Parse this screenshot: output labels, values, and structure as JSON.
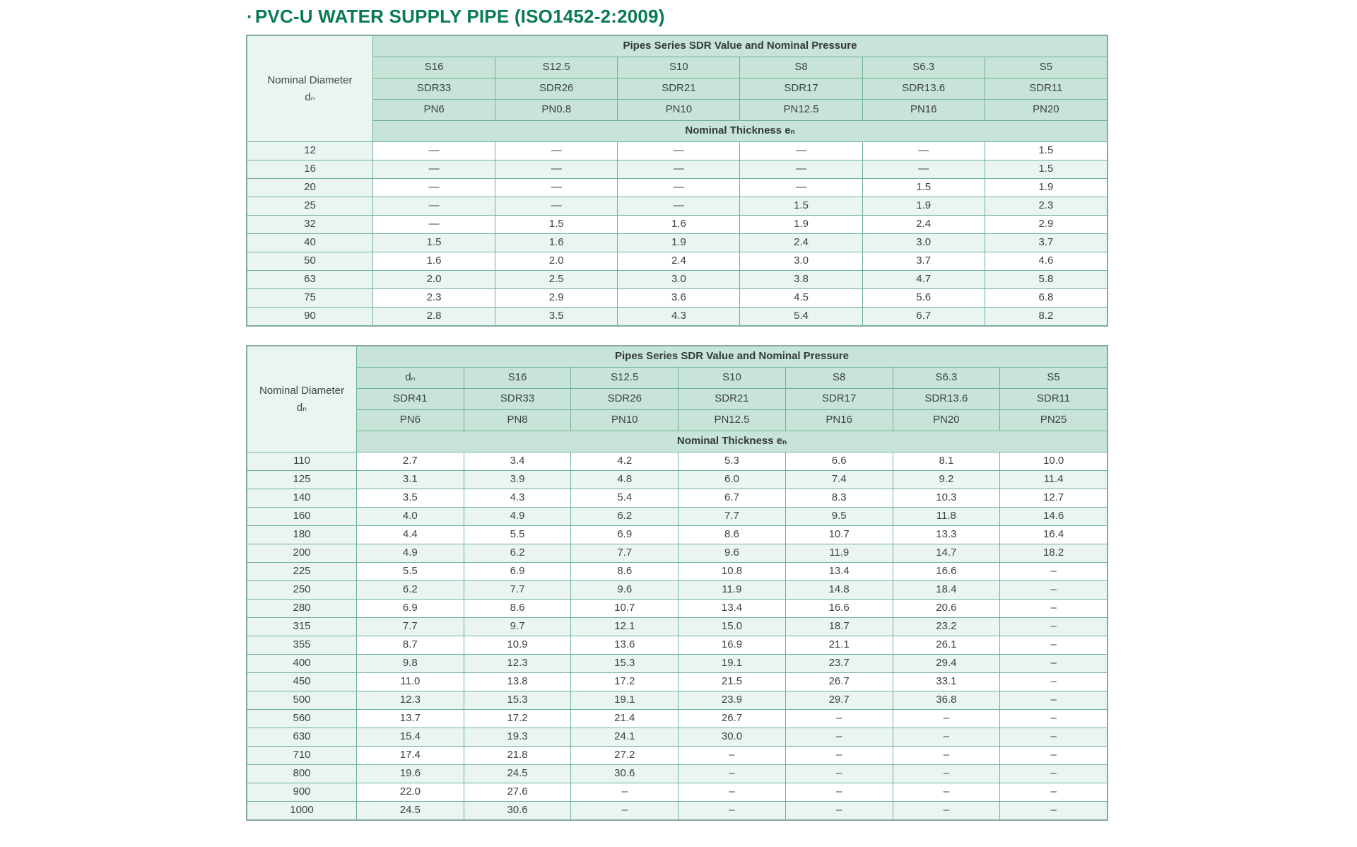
{
  "page": {
    "bullet": "·",
    "title": "PVC-U WATER SUPPLY PIPE (ISO1452-2:2009)"
  },
  "colors": {
    "title_green": "#087c50",
    "header_bg": "#c8e4d8",
    "tint_bg": "#eaf5f0",
    "grid_line": "#6fb297",
    "outer_border": "#96a59e",
    "text": "#3d4345"
  },
  "tables": [
    {
      "name": "pipe-spec-table-dn12-90",
      "banner": "Pipes Series SDR Value and Nominal Pressure",
      "corner": {
        "line1": "Nominal Diameter",
        "line2": "dₙ"
      },
      "thickness_label": "Nominal Thickness eₙ",
      "first_col_width": 178,
      "header_rows": [
        [
          "S16",
          "S12.5",
          "S10",
          "S8",
          "S6.3",
          "S5"
        ],
        [
          "SDR33",
          "SDR26",
          "SDR21",
          "SDR17",
          "SDR13.6",
          "SDR11"
        ],
        [
          "PN6",
          "PN0.8",
          "PN10",
          "PN12.5",
          "PN16",
          "PN20"
        ]
      ],
      "rows": [
        {
          "dn": "12",
          "values": [
            "—",
            "—",
            "—",
            "—",
            "—",
            "1.5"
          ]
        },
        {
          "dn": "16",
          "values": [
            "—",
            "—",
            "—",
            "—",
            "—",
            "1.5"
          ]
        },
        {
          "dn": "20",
          "values": [
            "—",
            "—",
            "—",
            "—",
            "1.5",
            "1.9"
          ]
        },
        {
          "dn": "25",
          "values": [
            "—",
            "—",
            "—",
            "1.5",
            "1.9",
            "2.3"
          ]
        },
        {
          "dn": "32",
          "values": [
            "—",
            "1.5",
            "1.6",
            "1.9",
            "2.4",
            "2.9"
          ]
        },
        {
          "dn": "40",
          "values": [
            "1.5",
            "1.6",
            "1.9",
            "2.4",
            "3.0",
            "3.7"
          ]
        },
        {
          "dn": "50",
          "values": [
            "1.6",
            "2.0",
            "2.4",
            "3.0",
            "3.7",
            "4.6"
          ]
        },
        {
          "dn": "63",
          "values": [
            "2.0",
            "2.5",
            "3.0",
            "3.8",
            "4.7",
            "5.8"
          ]
        },
        {
          "dn": "75",
          "values": [
            "2.3",
            "2.9",
            "3.6",
            "4.5",
            "5.6",
            "6.8"
          ]
        },
        {
          "dn": "90",
          "values": [
            "2.8",
            "3.5",
            "4.3",
            "5.4",
            "6.7",
            "8.2"
          ]
        }
      ]
    },
    {
      "name": "pipe-spec-table-dn110-1000",
      "banner": "Pipes Series SDR Value and Nominal Pressure",
      "corner": {
        "line1": "Nominal Diameter",
        "line2": "dₙ"
      },
      "thickness_label": "Nominal Thickness eₙ",
      "first_col_width": 155,
      "header_rows": [
        [
          "dₙ",
          "S16",
          "S12.5",
          "S10",
          "S8",
          "S6.3",
          "S5"
        ],
        [
          "SDR41",
          "SDR33",
          "SDR26",
          "SDR21",
          "SDR17",
          "SDR13.6",
          "SDR11"
        ],
        [
          "PN6",
          "PN8",
          "PN10",
          "PN12.5",
          "PN16",
          "PN20",
          "PN25"
        ]
      ],
      "rows": [
        {
          "dn": "110",
          "values": [
            "2.7",
            "3.4",
            "4.2",
            "5.3",
            "6.6",
            "8.1",
            "10.0"
          ]
        },
        {
          "dn": "125",
          "values": [
            "3.1",
            "3.9",
            "4.8",
            "6.0",
            "7.4",
            "9.2",
            "11.4"
          ]
        },
        {
          "dn": "140",
          "values": [
            "3.5",
            "4.3",
            "5.4",
            "6.7",
            "8.3",
            "10.3",
            "12.7"
          ]
        },
        {
          "dn": "160",
          "values": [
            "4.0",
            "4.9",
            "6.2",
            "7.7",
            "9.5",
            "11.8",
            "14.6"
          ]
        },
        {
          "dn": "180",
          "values": [
            "4.4",
            "5.5",
            "6.9",
            "8.6",
            "10.7",
            "13.3",
            "16.4"
          ]
        },
        {
          "dn": "200",
          "values": [
            "4.9",
            "6.2",
            "7.7",
            "9.6",
            "11.9",
            "14.7",
            "18.2"
          ]
        },
        {
          "dn": "225",
          "values": [
            "5.5",
            "6.9",
            "8.6",
            "10.8",
            "13.4",
            "16.6",
            "–"
          ]
        },
        {
          "dn": "250",
          "values": [
            "6.2",
            "7.7",
            "9.6",
            "11.9",
            "14.8",
            "18.4",
            "–"
          ]
        },
        {
          "dn": "280",
          "values": [
            "6.9",
            "8.6",
            "10.7",
            "13.4",
            "16.6",
            "20.6",
            "–"
          ]
        },
        {
          "dn": "315",
          "values": [
            "7.7",
            "9.7",
            "12.1",
            "15.0",
            "18.7",
            "23.2",
            "–"
          ]
        },
        {
          "dn": "355",
          "values": [
            "8.7",
            "10.9",
            "13.6",
            "16.9",
            "21.1",
            "26.1",
            "–"
          ]
        },
        {
          "dn": "400",
          "values": [
            "9.8",
            "12.3",
            "15.3",
            "19.1",
            "23.7",
            "29.4",
            "–"
          ]
        },
        {
          "dn": "450",
          "values": [
            "11.0",
            "13.8",
            "17.2",
            "21.5",
            "26.7",
            "33.1",
            "–"
          ]
        },
        {
          "dn": "500",
          "values": [
            "12.3",
            "15.3",
            "19.1",
            "23.9",
            "29.7",
            "36.8",
            "–"
          ]
        },
        {
          "dn": "560",
          "values": [
            "13.7",
            "17.2",
            "21.4",
            "26.7",
            "–",
            "–",
            "–"
          ]
        },
        {
          "dn": "630",
          "values": [
            "15.4",
            "19.3",
            "24.1",
            "30.0",
            "–",
            "–",
            "–"
          ]
        },
        {
          "dn": "710",
          "values": [
            "17.4",
            "21.8",
            "27.2",
            "–",
            "–",
            "–",
            "–"
          ]
        },
        {
          "dn": "800",
          "values": [
            "19.6",
            "24.5",
            "30.6",
            "–",
            "–",
            "–",
            "–"
          ]
        },
        {
          "dn": "900",
          "values": [
            "22.0",
            "27.6",
            "–",
            "–",
            "–",
            "–",
            "–"
          ]
        },
        {
          "dn": "1000",
          "values": [
            "24.5",
            "30.6",
            "–",
            "–",
            "–",
            "–",
            "–"
          ]
        }
      ]
    }
  ]
}
